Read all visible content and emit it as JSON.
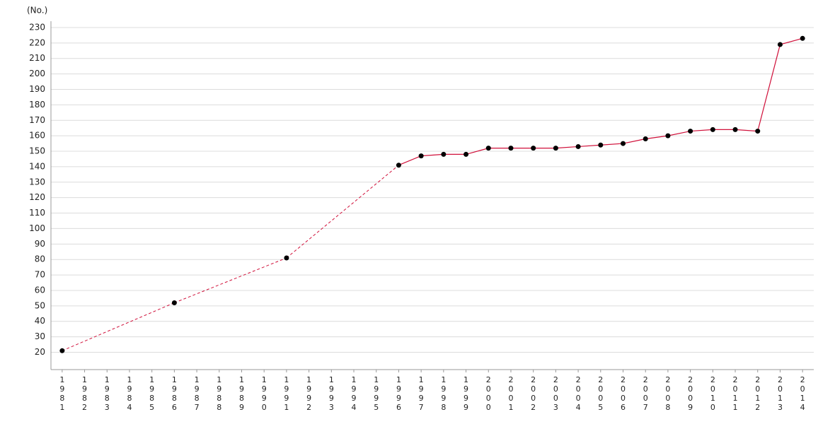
{
  "chart_data": {
    "type": "line",
    "y_label": "(No.)",
    "categories": [
      "1981",
      "1982",
      "1983",
      "1984",
      "1985",
      "1986",
      "1987",
      "1988",
      "1989",
      "1990",
      "1991",
      "1992",
      "1993",
      "1994",
      "1995",
      "1996",
      "1997",
      "1998",
      "1999",
      "2000",
      "2001",
      "2002",
      "2003",
      "2004",
      "2005",
      "2006",
      "2007",
      "2008",
      "2009",
      "2010",
      "2011",
      "2012",
      "2013",
      "2014"
    ],
    "series": [
      {
        "color": "#d0103a",
        "values": [
          21,
          null,
          null,
          null,
          null,
          52,
          null,
          null,
          null,
          null,
          81,
          null,
          null,
          null,
          null,
          141,
          147,
          148,
          148,
          152,
          152,
          152,
          152,
          153,
          154,
          155,
          158,
          160,
          163,
          164,
          164,
          163,
          219,
          223
        ]
      }
    ],
    "ylim": [
      8.8,
      234.1
    ],
    "yticks": [
      20,
      30,
      40,
      50,
      60,
      70,
      80,
      90,
      100,
      110,
      120,
      130,
      140,
      150,
      160,
      170,
      180,
      190,
      200,
      210,
      220,
      230
    ],
    "grid": true
  }
}
